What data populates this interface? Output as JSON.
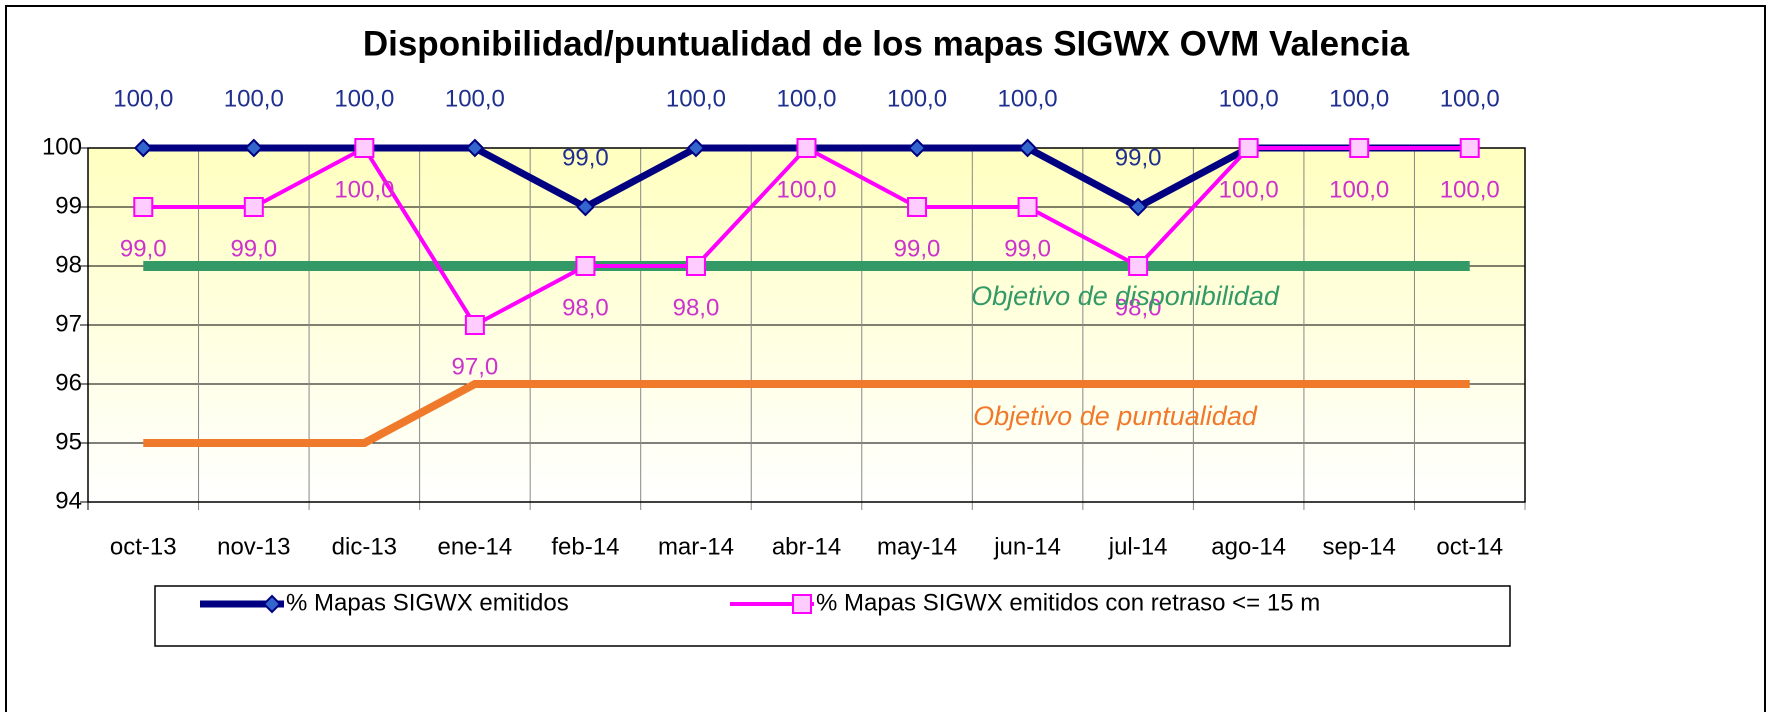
{
  "chart_data": {
    "type": "line",
    "title": "Disponibilidad/puntualidad de los mapas SIGWX OVM Valencia",
    "categories": [
      "oct-13",
      "nov-13",
      "dic-13",
      "ene-14",
      "feb-14",
      "mar-14",
      "abr-14",
      "may-14",
      "jun-14",
      "jul-14",
      "ago-14",
      "sep-14",
      "oct-14"
    ],
    "series": [
      {
        "name": "% Mapas SIGWX emitidos",
        "color": "#000080",
        "marker_color": "#3366cc",
        "marker": "diamond",
        "values": [
          100,
          100,
          100,
          100,
          99,
          100,
          100,
          100,
          100,
          99,
          100,
          100,
          100
        ],
        "value_labels": [
          "100,0",
          "100,0",
          "100,0",
          "100,0",
          "99,0",
          "100,0",
          "100,0",
          "100,0",
          "100,0",
          "99,0",
          "100,0",
          "100,0",
          "100,0"
        ],
        "label_color": "#1f2f8f",
        "label_position": "above"
      },
      {
        "name": "% Mapas SIGWX emitidos con retraso <= 15 m",
        "color": "#ff00ff",
        "marker_color": "#ffccff",
        "marker": "square",
        "values": [
          99,
          99,
          100,
          97,
          98,
          98,
          100,
          99,
          99,
          98,
          100,
          100,
          100
        ],
        "value_labels": [
          "99,0",
          "99,0",
          "100,0",
          "97,0",
          "98,0",
          "98,0",
          "100,0",
          "99,0",
          "99,0",
          "98,0",
          "100,0",
          "100,0",
          "100,0"
        ],
        "label_color": "#cc33cc",
        "label_position": "below"
      },
      {
        "color": "#339966",
        "values": [
          98,
          98,
          98,
          98,
          98,
          98,
          98,
          98,
          98,
          98,
          98,
          98,
          98
        ]
      },
      {
        "color": "#f07a2c",
        "values": [
          95,
          95,
          95,
          96,
          96,
          96,
          96,
          96,
          96,
          96,
          96,
          96,
          96
        ]
      }
    ],
    "annotations": [
      "Objetivo de disponibilidad",
      "Objetivo de puntualidad"
    ],
    "ylim": [
      94,
      100
    ],
    "yticks": [
      94,
      95,
      96,
      97,
      98,
      99,
      100
    ],
    "grid": true,
    "legend": "bottom"
  }
}
